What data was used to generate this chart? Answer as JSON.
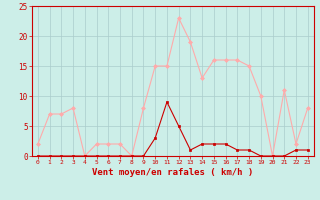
{
  "hours": [
    0,
    1,
    2,
    3,
    4,
    5,
    6,
    7,
    8,
    9,
    10,
    11,
    12,
    13,
    14,
    15,
    16,
    17,
    18,
    19,
    20,
    21,
    22,
    23
  ],
  "vent_moyen": [
    0,
    0,
    0,
    0,
    0,
    0,
    0,
    0,
    0,
    0,
    3,
    9,
    5,
    1,
    2,
    2,
    2,
    1,
    1,
    0,
    0,
    0,
    1,
    1
  ],
  "rafales": [
    2,
    7,
    7,
    8,
    0,
    2,
    2,
    2,
    0,
    8,
    15,
    15,
    23,
    19,
    13,
    16,
    16,
    16,
    15,
    10,
    0,
    11,
    2,
    8
  ],
  "color_moyen": "#cc0000",
  "color_rafales": "#ffaaaa",
  "bg_color": "#cceee8",
  "grid_color": "#aacccc",
  "xlabel": "Vent moyen/en rafales ( km/h )",
  "ylim": [
    0,
    25
  ],
  "yticks": [
    0,
    5,
    10,
    15,
    20,
    25
  ],
  "xlabel_color": "#cc0000"
}
